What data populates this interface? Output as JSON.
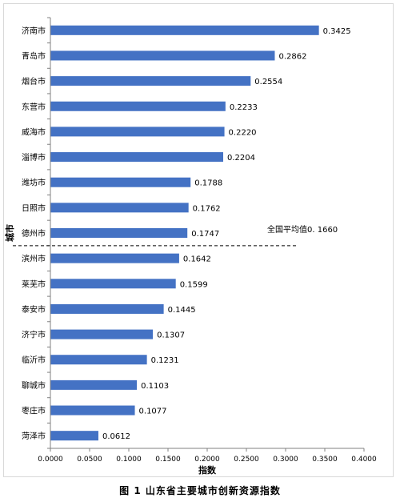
{
  "chart_data": {
    "type": "bar",
    "orientation": "horizontal",
    "title": "",
    "xlabel": "指数",
    "ylabel": "城市",
    "categories": [
      "济南市",
      "青岛市",
      "烟台市",
      "东营市",
      "威海市",
      "淄博市",
      "潍坊市",
      "日照市",
      "德州市",
      "滨州市",
      "莱芜市",
      "泰安市",
      "济宁市",
      "临沂市",
      "聊城市",
      "枣庄市",
      "菏泽市"
    ],
    "values": [
      0.3425,
      0.2862,
      0.2554,
      0.2233,
      0.222,
      0.2204,
      0.1788,
      0.1762,
      0.1747,
      0.1642,
      0.1599,
      0.1445,
      0.1307,
      0.1231,
      0.1103,
      0.1077,
      0.0612
    ],
    "value_labels": [
      "0.3425",
      "0.2862",
      "0.2554",
      "0.2233",
      "0.2220",
      "0.2204",
      "0.1788",
      "0.1762",
      "0.1747",
      "0.1642",
      "0.1599",
      "0.1445",
      "0.1307",
      "0.1231",
      "0.1103",
      "0.1077",
      "0.0612"
    ],
    "xlim": [
      0,
      0.4
    ],
    "x_ticks": [
      "0.0000",
      "0.0500",
      "0.1000",
      "0.1500",
      "0.2000",
      "0.2500",
      "0.3000",
      "0.3500",
      "0.4000"
    ],
    "grid": false,
    "bar_color": "#4472C4",
    "reference_line": {
      "label": "全国平均值0. 1660",
      "style": "dashed"
    }
  },
  "caption": "图 1  山东省主要城市创新资源指数"
}
